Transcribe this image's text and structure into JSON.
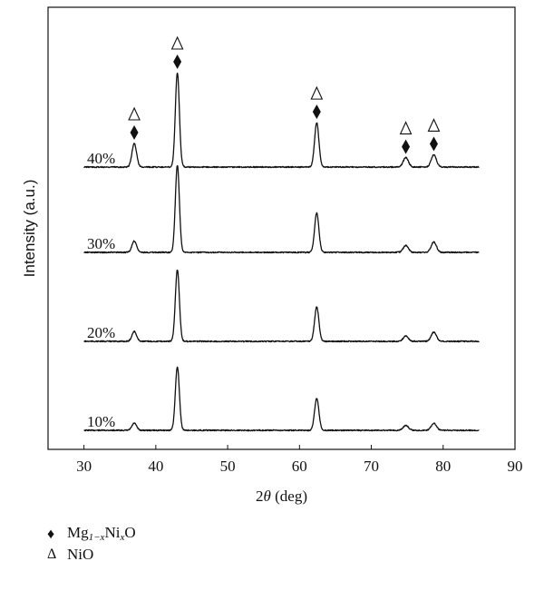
{
  "chart_data": {
    "type": "line",
    "title": "",
    "xlabel_prefix": "2",
    "xlabel_symbol": "θ",
    "xlabel_suffix": " (deg)",
    "ylabel": "Intensity (a.u.)",
    "xlim": [
      25,
      90
    ],
    "xticks": [
      30,
      40,
      50,
      60,
      70,
      80,
      90
    ],
    "yticks_shown": false,
    "grid": false,
    "peak_positions": [
      37.0,
      43.0,
      62.4,
      74.8,
      78.7
    ],
    "series": [
      {
        "name": "10%",
        "x_range": [
          30,
          85
        ],
        "peak_heights": [
          0.1,
          0.9,
          0.45,
          0.07,
          0.1
        ]
      },
      {
        "name": "20%",
        "x_range": [
          30,
          85
        ],
        "peak_heights": [
          0.13,
          0.94,
          0.45,
          0.07,
          0.12
        ]
      },
      {
        "name": "30%",
        "x_range": [
          30,
          85
        ],
        "peak_heights": [
          0.13,
          1.0,
          0.45,
          0.08,
          0.12
        ]
      },
      {
        "name": "40%",
        "x_range": [
          30,
          85
        ],
        "peak_heights": [
          0.25,
          1.0,
          0.47,
          0.1,
          0.13
        ]
      }
    ],
    "annotations": [
      {
        "x": 37.0,
        "symbols": [
          "diamond",
          "triangle"
        ]
      },
      {
        "x": 43.0,
        "symbols": [
          "diamond",
          "triangle"
        ]
      },
      {
        "x": 62.4,
        "symbols": [
          "diamond",
          "triangle"
        ]
      },
      {
        "x": 74.8,
        "symbols": [
          "diamond",
          "triangle"
        ]
      },
      {
        "x": 78.7,
        "symbols": [
          "diamond",
          "triangle"
        ]
      }
    ]
  },
  "legend": {
    "items": [
      {
        "symbol": "♦",
        "text_main": "Mg",
        "text_sub": "1−x",
        "text_mid": "Ni",
        "text_sub2": "x",
        "text_end": "O"
      },
      {
        "symbol": "Δ",
        "text_main": "NiO"
      }
    ]
  },
  "colors": {
    "line": "#111111",
    "axis": "#111111"
  }
}
